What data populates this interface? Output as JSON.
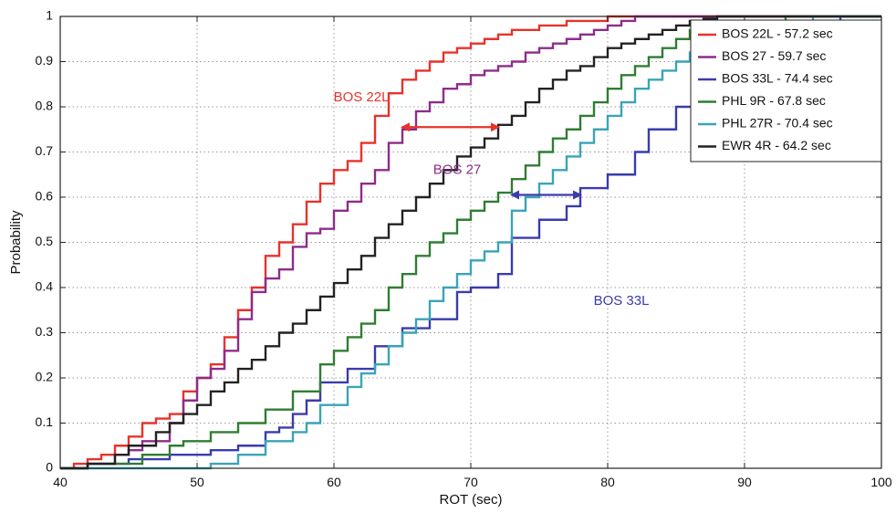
{
  "chart_data": {
    "type": "line",
    "xlabel": "ROT (sec)",
    "ylabel": "Probability",
    "xlim": [
      40,
      100
    ],
    "ylim": [
      0,
      1
    ],
    "xticks": [
      40,
      50,
      60,
      70,
      80,
      90,
      100
    ],
    "yticks": [
      0,
      0.1,
      0.2,
      0.3,
      0.4,
      0.5,
      0.6,
      0.7,
      0.8,
      0.9,
      1
    ],
    "ytick_labels": [
      "0",
      "0.1",
      "0.2",
      "0.3",
      "0.4",
      "0.5",
      "0.6",
      "0.7",
      "0.8",
      "0.9",
      "1"
    ],
    "grid": true,
    "legend_position": "top-right",
    "step": true,
    "series": [
      {
        "name": "BOS 22L - 57.2 sec",
        "color": "#e8322a",
        "x": [
          41,
          42,
          43,
          44,
          45,
          46,
          47,
          48,
          49,
          50,
          51,
          52,
          53,
          54,
          55,
          56,
          57,
          58,
          59,
          60,
          61,
          62,
          63,
          64,
          65,
          66,
          67,
          68,
          69,
          70,
          71,
          72,
          73,
          75,
          77,
          80
        ],
        "y": [
          0.01,
          0.02,
          0.03,
          0.05,
          0.07,
          0.1,
          0.11,
          0.12,
          0.17,
          0.2,
          0.23,
          0.29,
          0.35,
          0.4,
          0.47,
          0.5,
          0.54,
          0.59,
          0.63,
          0.66,
          0.68,
          0.72,
          0.78,
          0.83,
          0.86,
          0.88,
          0.9,
          0.92,
          0.93,
          0.94,
          0.95,
          0.96,
          0.97,
          0.98,
          0.99,
          1.0
        ]
      },
      {
        "name": "BOS 27 - 59.7 sec",
        "color": "#8e2c8a",
        "x": [
          42,
          44,
          45,
          46,
          48,
          49,
          50,
          51,
          52,
          53,
          54,
          55,
          56,
          57,
          58,
          59,
          60,
          61,
          62,
          63,
          64,
          65,
          66,
          67,
          68,
          69,
          70,
          71,
          72,
          73,
          74,
          75,
          76,
          77,
          78,
          79,
          80,
          81,
          82
        ],
        "y": [
          0.01,
          0.03,
          0.04,
          0.06,
          0.1,
          0.15,
          0.2,
          0.22,
          0.26,
          0.33,
          0.39,
          0.42,
          0.44,
          0.49,
          0.52,
          0.53,
          0.57,
          0.59,
          0.63,
          0.66,
          0.72,
          0.75,
          0.79,
          0.81,
          0.84,
          0.85,
          0.87,
          0.88,
          0.89,
          0.9,
          0.92,
          0.93,
          0.94,
          0.95,
          0.96,
          0.97,
          0.98,
          0.99,
          1.0
        ]
      },
      {
        "name": "BOS 33L - 74.4 sec",
        "color": "#3a3bae",
        "x": [
          42,
          45,
          48,
          51,
          53,
          55,
          56,
          57,
          58,
          59,
          61,
          63,
          65,
          67,
          69,
          70,
          72,
          73,
          75,
          77,
          78,
          80,
          82,
          83,
          85,
          87,
          90,
          92,
          95,
          97
        ],
        "y": [
          0.01,
          0.02,
          0.03,
          0.04,
          0.05,
          0.08,
          0.09,
          0.12,
          0.15,
          0.19,
          0.22,
          0.27,
          0.31,
          0.33,
          0.39,
          0.4,
          0.43,
          0.51,
          0.55,
          0.58,
          0.62,
          0.65,
          0.7,
          0.75,
          0.8,
          0.85,
          0.9,
          0.93,
          0.97,
          1.0
        ]
      },
      {
        "name": "PHL 9R - 67.8 sec",
        "color": "#2f7d32",
        "x": [
          42,
          46,
          48,
          49,
          51,
          53,
          55,
          57,
          59,
          60,
          61,
          62,
          63,
          64,
          65,
          66,
          67,
          68,
          69,
          70,
          71,
          72,
          73,
          74,
          75,
          76,
          77,
          78,
          79,
          80,
          81,
          82,
          83,
          84,
          85,
          86,
          88,
          90,
          93
        ],
        "y": [
          0.01,
          0.03,
          0.05,
          0.06,
          0.08,
          0.1,
          0.13,
          0.17,
          0.23,
          0.26,
          0.29,
          0.32,
          0.35,
          0.4,
          0.43,
          0.47,
          0.5,
          0.52,
          0.55,
          0.57,
          0.59,
          0.61,
          0.64,
          0.67,
          0.7,
          0.73,
          0.75,
          0.78,
          0.81,
          0.84,
          0.87,
          0.89,
          0.91,
          0.93,
          0.95,
          0.97,
          0.98,
          0.99,
          1.0
        ]
      },
      {
        "name": "PHL 27R - 70.4 sec",
        "color": "#39a4b8",
        "x": [
          51,
          53,
          55,
          57,
          58,
          59,
          61,
          62,
          63,
          64,
          65,
          66,
          67,
          68,
          69,
          70,
          71,
          72,
          73,
          74,
          75,
          76,
          77,
          78,
          79,
          80,
          81,
          82,
          83,
          84,
          85,
          86,
          87,
          88,
          90,
          92,
          95
        ],
        "y": [
          0.01,
          0.03,
          0.06,
          0.08,
          0.1,
          0.14,
          0.18,
          0.21,
          0.23,
          0.27,
          0.3,
          0.33,
          0.37,
          0.4,
          0.43,
          0.46,
          0.48,
          0.5,
          0.57,
          0.6,
          0.63,
          0.66,
          0.69,
          0.72,
          0.75,
          0.78,
          0.81,
          0.84,
          0.86,
          0.88,
          0.9,
          0.92,
          0.94,
          0.96,
          0.97,
          0.98,
          1.0
        ]
      },
      {
        "name": "EWR 4R - 64.2 sec",
        "color": "#222222",
        "x": [
          42,
          44,
          45,
          47,
          48,
          49,
          50,
          51,
          52,
          53,
          54,
          55,
          56,
          57,
          58,
          59,
          60,
          61,
          62,
          63,
          64,
          65,
          66,
          67,
          68,
          69,
          70,
          71,
          72,
          73,
          74,
          75,
          76,
          77,
          78,
          79,
          80,
          81,
          82,
          83,
          84,
          85,
          86,
          87,
          88
        ],
        "y": [
          0.01,
          0.03,
          0.05,
          0.08,
          0.1,
          0.12,
          0.14,
          0.17,
          0.19,
          0.22,
          0.24,
          0.27,
          0.3,
          0.32,
          0.35,
          0.38,
          0.41,
          0.44,
          0.47,
          0.51,
          0.54,
          0.57,
          0.6,
          0.63,
          0.66,
          0.69,
          0.71,
          0.73,
          0.76,
          0.78,
          0.81,
          0.84,
          0.86,
          0.88,
          0.89,
          0.91,
          0.93,
          0.94,
          0.95,
          0.96,
          0.97,
          0.98,
          0.99,
          0.995,
          1.0
        ]
      }
    ],
    "annotations": [
      {
        "text": "BOS 22L",
        "color": "#e8322a",
        "x": 62,
        "y": 0.82
      },
      {
        "text": "BOS 27",
        "color": "#8e2c8a",
        "x": 69,
        "y": 0.66
      },
      {
        "text": "BOS 33L",
        "color": "#3a3bae",
        "x": 81,
        "y": 0.37
      }
    ],
    "arrows": [
      {
        "color": "#e8322a",
        "x1": 65,
        "x2": 72,
        "y": 0.755
      },
      {
        "color": "#3a3bae",
        "x1": 73,
        "x2": 78,
        "y": 0.605
      }
    ]
  }
}
